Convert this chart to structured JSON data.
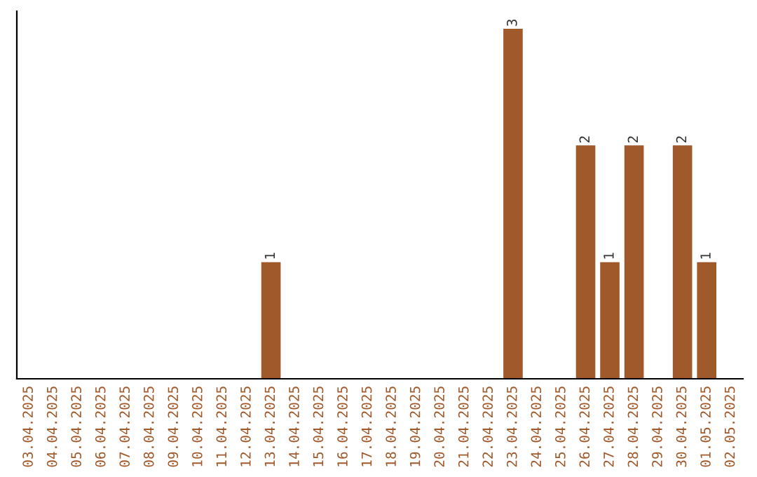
{
  "chart_data": {
    "type": "bar",
    "categories": [
      "03.04.2025",
      "04.04.2025",
      "05.04.2025",
      "06.04.2025",
      "07.04.2025",
      "08.04.2025",
      "09.04.2025",
      "10.04.2025",
      "11.04.2025",
      "12.04.2025",
      "13.04.2025",
      "14.04.2025",
      "15.04.2025",
      "16.04.2025",
      "17.04.2025",
      "18.04.2025",
      "19.04.2025",
      "20.04.2025",
      "21.04.2025",
      "22.04.2025",
      "23.04.2025",
      "24.04.2025",
      "25.04.2025",
      "26.04.2025",
      "27.04.2025",
      "28.04.2025",
      "29.04.2025",
      "30.04.2025",
      "01.05.2025",
      "02.05.2025"
    ],
    "values": [
      0,
      0,
      0,
      0,
      0,
      0,
      0,
      0,
      0,
      0,
      1,
      0,
      0,
      0,
      0,
      0,
      0,
      0,
      0,
      0,
      3,
      0,
      0,
      2,
      1,
      2,
      0,
      2,
      1,
      0
    ],
    "value_labels": [
      null,
      null,
      null,
      null,
      null,
      null,
      null,
      null,
      null,
      null,
      "1",
      null,
      null,
      null,
      null,
      null,
      null,
      null,
      null,
      null,
      "3",
      null,
      null,
      "2",
      "1",
      "2",
      null,
      "2",
      "1",
      null
    ],
    "color": "#a0592a",
    "tick_labels": "x"
  }
}
